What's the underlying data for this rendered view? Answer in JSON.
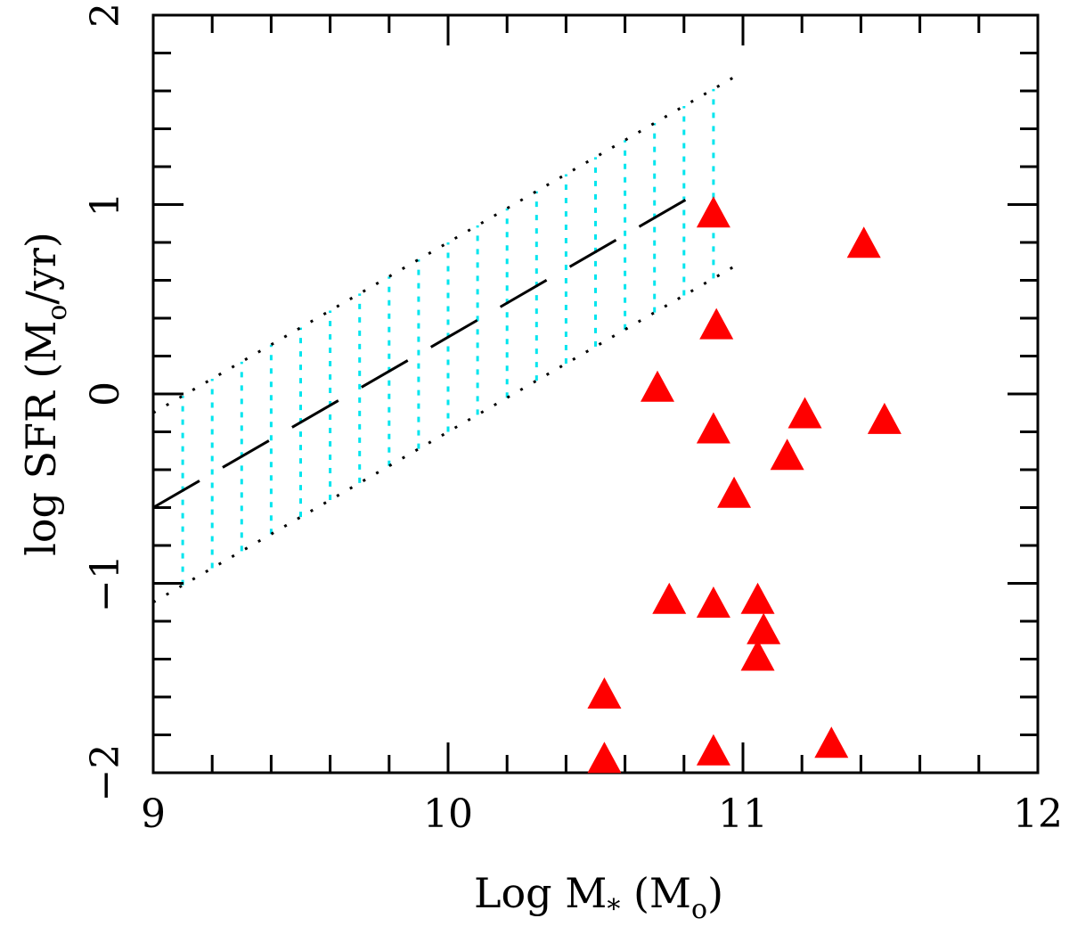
{
  "chart_data": {
    "type": "scatter",
    "xlabel": {
      "main": "Log M",
      "sub": "*",
      "after": " (M",
      "sub2": "o",
      "tail": ")"
    },
    "ylabel": {
      "main": "log SFR (M",
      "sub": "o",
      "tail": "/yr)"
    },
    "xlim": [
      9,
      12
    ],
    "ylim": [
      -2,
      2
    ],
    "xticks": [
      "9",
      "10",
      "11",
      "12"
    ],
    "yticks": [
      "−2",
      "−1",
      "0",
      "1",
      "2"
    ],
    "grid": false,
    "band": {
      "x": [
        9.0,
        11.0
      ],
      "center": [
        -0.6,
        1.2
      ],
      "upper": [
        -0.1,
        1.7
      ],
      "lower": [
        -1.1,
        0.7
      ],
      "fill_color": "#00e5ee",
      "center_style": "long-dash",
      "edge_style": "dotted"
    },
    "points": {
      "marker": "triangle",
      "color": "#ff0000",
      "values": [
        {
          "x": 10.53,
          "y": -1.6
        },
        {
          "x": 10.53,
          "y": -1.94
        },
        {
          "x": 10.71,
          "y": 0.02
        },
        {
          "x": 10.75,
          "y": -1.1
        },
        {
          "x": 10.9,
          "y": 0.94
        },
        {
          "x": 10.91,
          "y": 0.35
        },
        {
          "x": 10.9,
          "y": -0.2
        },
        {
          "x": 10.9,
          "y": -1.12
        },
        {
          "x": 10.9,
          "y": -1.9
        },
        {
          "x": 10.97,
          "y": -0.54
        },
        {
          "x": 11.05,
          "y": -1.1
        },
        {
          "x": 11.07,
          "y": -1.26
        },
        {
          "x": 11.05,
          "y": -1.4
        },
        {
          "x": 11.15,
          "y": -0.34
        },
        {
          "x": 11.21,
          "y": -0.12
        },
        {
          "x": 11.3,
          "y": -1.86
        },
        {
          "x": 11.41,
          "y": 0.78
        },
        {
          "x": 11.48,
          "y": -0.15
        }
      ]
    }
  }
}
